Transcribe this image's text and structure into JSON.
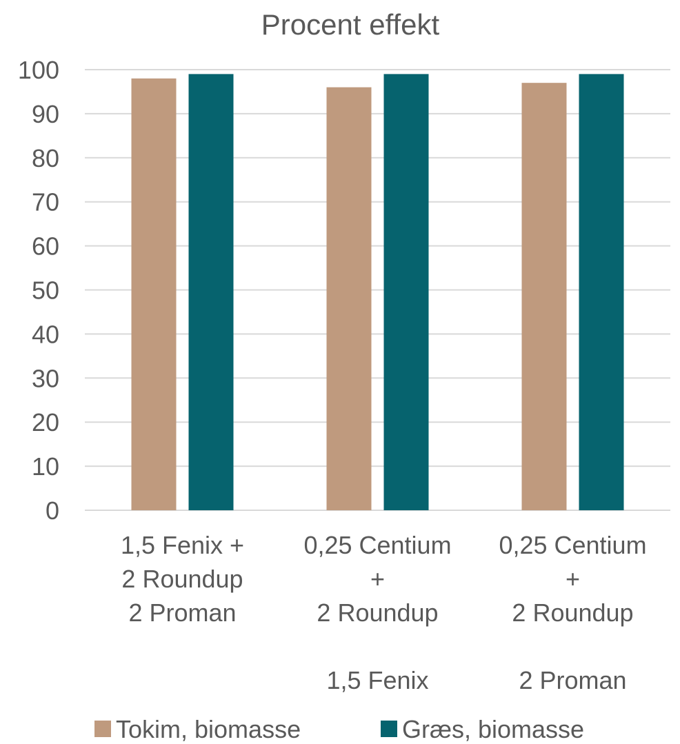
{
  "chart_data": {
    "type": "bar",
    "title": "Procent effekt",
    "xlabel": "",
    "ylabel": "",
    "ylim": [
      0,
      100
    ],
    "yticks": [
      0,
      10,
      20,
      30,
      40,
      50,
      60,
      70,
      80,
      90,
      100
    ],
    "grid": true,
    "legend_position": "bottom",
    "categories": [
      [
        "1,5 Fenix +",
        "2 Roundup",
        "2 Proman"
      ],
      [
        "0,25 Centium",
        "+",
        "2 Roundup",
        "",
        "1,5 Fenix"
      ],
      [
        "0,25 Centium",
        "+",
        "2 Roundup",
        "",
        "2 Proman"
      ]
    ],
    "series": [
      {
        "name": "Tokim, biomasse",
        "color": "#BF9A7E",
        "values": [
          98,
          96,
          97
        ]
      },
      {
        "name": "Græs, biomasse",
        "color": "#06636E",
        "values": [
          99,
          99,
          99
        ]
      }
    ]
  }
}
